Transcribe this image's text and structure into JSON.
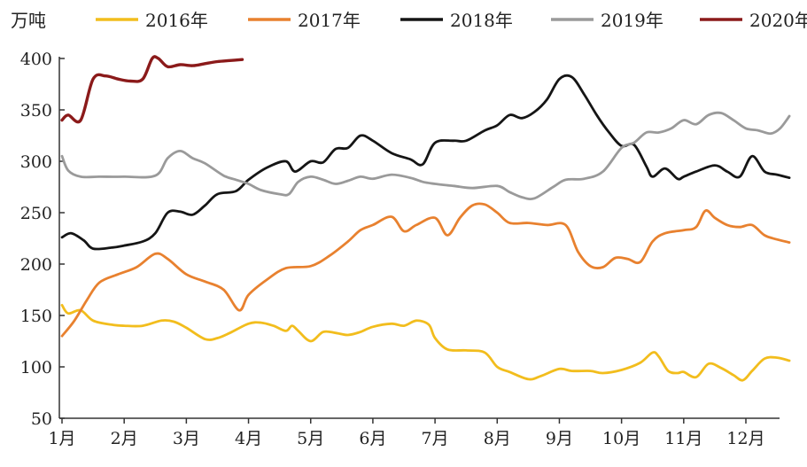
{
  "chart_data": {
    "type": "line",
    "unit_label": "万吨",
    "ylim": [
      50,
      400
    ],
    "y_ticks": [
      50,
      100,
      150,
      200,
      250,
      300,
      350,
      400
    ],
    "x_ticks": [
      "1月",
      "2月",
      "3月",
      "4月",
      "5月",
      "6月",
      "7月",
      "8月",
      "9月",
      "10月",
      "11月",
      "12月"
    ],
    "xlim": [
      1,
      12.7
    ],
    "legend_position": "top",
    "grid": false,
    "series": [
      {
        "name": "2016年",
        "color": "#f2bd1d",
        "points": [
          [
            1,
            160
          ],
          [
            1.1,
            152
          ],
          [
            1.3,
            155
          ],
          [
            1.5,
            145
          ],
          [
            1.8,
            141
          ],
          [
            2,
            140
          ],
          [
            2.3,
            140
          ],
          [
            2.6,
            145
          ],
          [
            2.8,
            144
          ],
          [
            3,
            138
          ],
          [
            3.3,
            127
          ],
          [
            3.5,
            128
          ],
          [
            3.7,
            133
          ],
          [
            4,
            142
          ],
          [
            4.2,
            143
          ],
          [
            4.4,
            140
          ],
          [
            4.6,
            135
          ],
          [
            4.7,
            140
          ],
          [
            4.8,
            135
          ],
          [
            5,
            125
          ],
          [
            5.2,
            134
          ],
          [
            5.4,
            133
          ],
          [
            5.6,
            131
          ],
          [
            5.8,
            134
          ],
          [
            6,
            139
          ],
          [
            6.3,
            142
          ],
          [
            6.5,
            140
          ],
          [
            6.7,
            145
          ],
          [
            6.9,
            141
          ],
          [
            7,
            128
          ],
          [
            7.2,
            117
          ],
          [
            7.5,
            116
          ],
          [
            7.8,
            114
          ],
          [
            8,
            100
          ],
          [
            8.2,
            95
          ],
          [
            8.5,
            88
          ],
          [
            8.7,
            91
          ],
          [
            9,
            98
          ],
          [
            9.2,
            96
          ],
          [
            9.5,
            96
          ],
          [
            9.7,
            94
          ],
          [
            10,
            97
          ],
          [
            10.3,
            104
          ],
          [
            10.5,
            114
          ],
          [
            10.6,
            110
          ],
          [
            10.75,
            96
          ],
          [
            10.9,
            94
          ],
          [
            11,
            95
          ],
          [
            11.2,
            90
          ],
          [
            11.4,
            103
          ],
          [
            11.6,
            99
          ],
          [
            11.8,
            92
          ],
          [
            11.95,
            87
          ],
          [
            12.1,
            96
          ],
          [
            12.3,
            108
          ],
          [
            12.5,
            109
          ],
          [
            12.7,
            106
          ]
        ]
      },
      {
        "name": "2017年",
        "color": "#e8812f",
        "points": [
          [
            1,
            130
          ],
          [
            1.2,
            145
          ],
          [
            1.4,
            165
          ],
          [
            1.6,
            182
          ],
          [
            1.9,
            190
          ],
          [
            2.2,
            197
          ],
          [
            2.5,
            210
          ],
          [
            2.7,
            205
          ],
          [
            3,
            190
          ],
          [
            3.3,
            183
          ],
          [
            3.6,
            175
          ],
          [
            3.85,
            155
          ],
          [
            4,
            170
          ],
          [
            4.3,
            185
          ],
          [
            4.6,
            196
          ],
          [
            5,
            198
          ],
          [
            5.3,
            208
          ],
          [
            5.6,
            222
          ],
          [
            5.8,
            233
          ],
          [
            6,
            238
          ],
          [
            6.3,
            246
          ],
          [
            6.5,
            232
          ],
          [
            6.7,
            238
          ],
          [
            7,
            245
          ],
          [
            7.2,
            228
          ],
          [
            7.4,
            245
          ],
          [
            7.6,
            257
          ],
          [
            7.8,
            258
          ],
          [
            8,
            250
          ],
          [
            8.2,
            240
          ],
          [
            8.5,
            240
          ],
          [
            8.8,
            238
          ],
          [
            9.1,
            238
          ],
          [
            9.3,
            212
          ],
          [
            9.5,
            198
          ],
          [
            9.7,
            197
          ],
          [
            9.9,
            206
          ],
          [
            10.1,
            205
          ],
          [
            10.3,
            202
          ],
          [
            10.5,
            222
          ],
          [
            10.7,
            230
          ],
          [
            11,
            233
          ],
          [
            11.2,
            236
          ],
          [
            11.35,
            252
          ],
          [
            11.5,
            245
          ],
          [
            11.7,
            238
          ],
          [
            11.9,
            236
          ],
          [
            12.1,
            238
          ],
          [
            12.3,
            228
          ],
          [
            12.5,
            224
          ],
          [
            12.7,
            221
          ]
        ]
      },
      {
        "name": "2018年",
        "color": "#151515",
        "points": [
          [
            1,
            226
          ],
          [
            1.15,
            230
          ],
          [
            1.35,
            223
          ],
          [
            1.5,
            215
          ],
          [
            1.8,
            216
          ],
          [
            2,
            218
          ],
          [
            2.3,
            222
          ],
          [
            2.5,
            230
          ],
          [
            2.7,
            250
          ],
          [
            2.9,
            251
          ],
          [
            3.1,
            248
          ],
          [
            3.3,
            257
          ],
          [
            3.5,
            268
          ],
          [
            3.8,
            271
          ],
          [
            4,
            282
          ],
          [
            4.3,
            294
          ],
          [
            4.6,
            300
          ],
          [
            4.75,
            290
          ],
          [
            5,
            300
          ],
          [
            5.2,
            299
          ],
          [
            5.4,
            312
          ],
          [
            5.6,
            313
          ],
          [
            5.8,
            325
          ],
          [
            6,
            320
          ],
          [
            6.3,
            308
          ],
          [
            6.6,
            302
          ],
          [
            6.8,
            297
          ],
          [
            7,
            318
          ],
          [
            7.3,
            320
          ],
          [
            7.5,
            320
          ],
          [
            7.8,
            330
          ],
          [
            8,
            335
          ],
          [
            8.2,
            345
          ],
          [
            8.4,
            342
          ],
          [
            8.6,
            348
          ],
          [
            8.8,
            360
          ],
          [
            9,
            380
          ],
          [
            9.2,
            382
          ],
          [
            9.4,
            365
          ],
          [
            9.6,
            345
          ],
          [
            9.8,
            328
          ],
          [
            10,
            315
          ],
          [
            10.2,
            316
          ],
          [
            10.4,
            295
          ],
          [
            10.5,
            285
          ],
          [
            10.7,
            293
          ],
          [
            10.9,
            283
          ],
          [
            11,
            285
          ],
          [
            11.2,
            290
          ],
          [
            11.5,
            296
          ],
          [
            11.7,
            290
          ],
          [
            11.9,
            285
          ],
          [
            12.1,
            305
          ],
          [
            12.3,
            290
          ],
          [
            12.5,
            287
          ],
          [
            12.7,
            284
          ]
        ]
      },
      {
        "name": "2019年",
        "color": "#9a9a9a",
        "points": [
          [
            1,
            305
          ],
          [
            1.1,
            291
          ],
          [
            1.3,
            285
          ],
          [
            1.6,
            285
          ],
          [
            2,
            285
          ],
          [
            2.5,
            286
          ],
          [
            2.7,
            303
          ],
          [
            2.9,
            310
          ],
          [
            3.1,
            303
          ],
          [
            3.3,
            298
          ],
          [
            3.6,
            286
          ],
          [
            3.8,
            282
          ],
          [
            4,
            278
          ],
          [
            4.2,
            272
          ],
          [
            4.5,
            268
          ],
          [
            4.65,
            268
          ],
          [
            4.8,
            280
          ],
          [
            5,
            285
          ],
          [
            5.2,
            282
          ],
          [
            5.4,
            278
          ],
          [
            5.6,
            281
          ],
          [
            5.8,
            285
          ],
          [
            6,
            283
          ],
          [
            6.3,
            287
          ],
          [
            6.6,
            284
          ],
          [
            6.8,
            280
          ],
          [
            7,
            278
          ],
          [
            7.3,
            276
          ],
          [
            7.6,
            274
          ],
          [
            8,
            276
          ],
          [
            8.2,
            270
          ],
          [
            8.4,
            265
          ],
          [
            8.6,
            264
          ],
          [
            8.9,
            275
          ],
          [
            9.1,
            282
          ],
          [
            9.4,
            283
          ],
          [
            9.7,
            290
          ],
          [
            10,
            313
          ],
          [
            10.2,
            318
          ],
          [
            10.4,
            328
          ],
          [
            10.6,
            328
          ],
          [
            10.8,
            332
          ],
          [
            11,
            340
          ],
          [
            11.2,
            336
          ],
          [
            11.4,
            345
          ],
          [
            11.6,
            347
          ],
          [
            11.8,
            340
          ],
          [
            12,
            332
          ],
          [
            12.2,
            330
          ],
          [
            12.4,
            327
          ],
          [
            12.55,
            332
          ],
          [
            12.7,
            344
          ]
        ]
      },
      {
        "name": "2020年",
        "color": "#8b1a1a",
        "points": [
          [
            1,
            340
          ],
          [
            1.1,
            345
          ],
          [
            1.3,
            340
          ],
          [
            1.5,
            380
          ],
          [
            1.7,
            383
          ],
          [
            1.9,
            380
          ],
          [
            2.1,
            378
          ],
          [
            2.3,
            380
          ],
          [
            2.45,
            400
          ],
          [
            2.55,
            400
          ],
          [
            2.7,
            392
          ],
          [
            2.9,
            394
          ],
          [
            3.1,
            393
          ],
          [
            3.3,
            395
          ],
          [
            3.5,
            397
          ],
          [
            3.7,
            398
          ],
          [
            3.9,
            399
          ]
        ]
      }
    ]
  }
}
